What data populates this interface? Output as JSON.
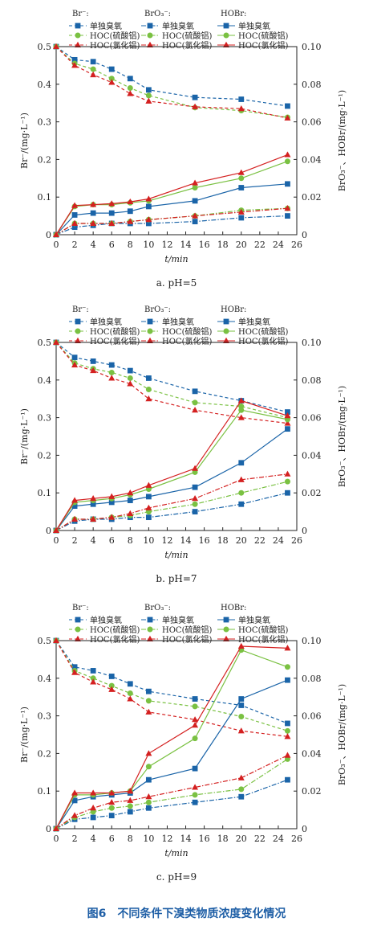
{
  "caption": "图6　不同条件下溴类物质浓度变化情况",
  "colors": {
    "blue": "#1a64a8",
    "green": "#7ac142",
    "red": "#d42020",
    "axis": "#222222"
  },
  "legend": {
    "groups": [
      "Br⁻:",
      "BrO₃⁻:",
      "HOBr:"
    ],
    "items": [
      "单独臭氧",
      "HOC(硫酸铝)",
      "HOC(氯化铝)"
    ]
  },
  "chart_data": [
    {
      "type": "line",
      "subtitle": "a. pH=5",
      "xlabel": "t/min",
      "ylabel_left": "Br⁻/(mg·L⁻¹)",
      "ylabel_right": "BrO₃⁻、HOBr/(mg·L⁻¹)",
      "xlim": [
        0,
        26
      ],
      "ylim_left": [
        0,
        0.5
      ],
      "ylim_right": [
        0,
        0.1
      ],
      "xticks": [
        0,
        2,
        4,
        6,
        8,
        10,
        12,
        14,
        16,
        18,
        20,
        22,
        24,
        26
      ],
      "yticks_left": [
        0,
        0.1,
        0.2,
        0.3,
        0.4,
        0.5
      ],
      "yticks_right": [
        0,
        0.02,
        0.04,
        0.06,
        0.08,
        0.1
      ],
      "ytick_labels_left": [
        "0",
        "0.1",
        "0.2",
        "0.3",
        "0.4",
        "0.5"
      ],
      "ytick_labels_right": [
        "0",
        "0.02",
        "0.04",
        "0.06",
        "0.08",
        "0.10"
      ],
      "x": [
        0,
        2,
        4,
        6,
        8,
        10,
        15,
        20,
        25
      ],
      "series": [
        {
          "group": "Br⁻",
          "name": "单独臭氧",
          "axis": "left",
          "style": "dashed",
          "color": "#1a64a8",
          "marker": "square",
          "values": [
            0.5,
            0.465,
            0.46,
            0.44,
            0.415,
            0.385,
            0.365,
            0.36,
            0.342
          ]
        },
        {
          "group": "Br⁻",
          "name": "HOC(硫酸铝)",
          "axis": "left",
          "style": "dashed",
          "color": "#7ac142",
          "marker": "circle",
          "values": [
            0.5,
            0.455,
            0.44,
            0.415,
            0.39,
            0.37,
            0.338,
            0.33,
            0.312
          ]
        },
        {
          "group": "Br⁻",
          "name": "HOC(氯化铝)",
          "axis": "left",
          "style": "dashed",
          "color": "#d42020",
          "marker": "triangle",
          "values": [
            0.5,
            0.45,
            0.425,
            0.405,
            0.375,
            0.355,
            0.34,
            0.335,
            0.31
          ]
        },
        {
          "group": "BrO₃⁻",
          "name": "单独臭氧",
          "axis": "right",
          "style": "dashdot",
          "color": "#1a64a8",
          "marker": "square",
          "values": [
            0,
            0.004,
            0.005,
            0.006,
            0.006,
            0.006,
            0.007,
            0.009,
            0.01
          ]
        },
        {
          "group": "BrO₃⁻",
          "name": "HOC(硫酸铝)",
          "axis": "right",
          "style": "dashdot",
          "color": "#7ac142",
          "marker": "circle",
          "values": [
            0,
            0.006,
            0.006,
            0.006,
            0.007,
            0.008,
            0.01,
            0.013,
            0.014
          ]
        },
        {
          "group": "BrO₃⁻",
          "name": "HOC(氯化铝)",
          "axis": "right",
          "style": "dashdot",
          "color": "#d42020",
          "marker": "triangle",
          "values": [
            0,
            0.006,
            0.006,
            0.006,
            0.007,
            0.008,
            0.01,
            0.012,
            0.014
          ]
        },
        {
          "group": "HOBr",
          "name": "单独臭氧",
          "axis": "right",
          "style": "solid",
          "color": "#1a64a8",
          "marker": "square",
          "values": [
            0,
            0.0105,
            0.0115,
            0.0115,
            0.0125,
            0.015,
            0.018,
            0.025,
            0.027
          ]
        },
        {
          "group": "HOBr",
          "name": "HOC(硫酸铝)",
          "axis": "right",
          "style": "solid",
          "color": "#7ac142",
          "marker": "circle",
          "values": [
            0,
            0.015,
            0.016,
            0.016,
            0.017,
            0.018,
            0.025,
            0.03,
            0.039
          ]
        },
        {
          "group": "HOBr",
          "name": "HOC(氯化铝)",
          "axis": "right",
          "style": "solid",
          "color": "#d42020",
          "marker": "triangle",
          "values": [
            0,
            0.0155,
            0.016,
            0.0165,
            0.0175,
            0.019,
            0.0275,
            0.033,
            0.0425
          ]
        }
      ]
    },
    {
      "type": "line",
      "subtitle": "b. pH=7",
      "xlabel": "t/min",
      "ylabel_left": "Br⁻/(mg·L⁻¹)",
      "ylabel_right": "BrO₃⁻、HOBr/(mg·L⁻¹)",
      "xlim": [
        0,
        26
      ],
      "ylim_left": [
        0,
        0.5
      ],
      "ylim_right": [
        0,
        0.1
      ],
      "xticks": [
        0,
        2,
        4,
        6,
        8,
        10,
        12,
        14,
        16,
        18,
        20,
        22,
        24,
        26
      ],
      "yticks_left": [
        0,
        0.1,
        0.2,
        0.3,
        0.4,
        0.5
      ],
      "yticks_right": [
        0,
        0.02,
        0.04,
        0.06,
        0.08,
        0.1
      ],
      "ytick_labels_left": [
        "0",
        "0.1",
        "0.2",
        "0.3",
        "0.4",
        "0.5"
      ],
      "ytick_labels_right": [
        "0",
        "0.02",
        "0.04",
        "0.06",
        "0.08",
        "0.10"
      ],
      "x": [
        0,
        2,
        4,
        6,
        8,
        10,
        15,
        20,
        25
      ],
      "series": [
        {
          "group": "Br⁻",
          "name": "单独臭氧",
          "axis": "left",
          "style": "dashed",
          "color": "#1a64a8",
          "marker": "square",
          "values": [
            0.5,
            0.46,
            0.45,
            0.44,
            0.425,
            0.405,
            0.37,
            0.345,
            0.315
          ]
        },
        {
          "group": "Br⁻",
          "name": "HOC(硫酸铝)",
          "axis": "left",
          "style": "dashed",
          "color": "#7ac142",
          "marker": "circle",
          "values": [
            0.5,
            0.445,
            0.43,
            0.42,
            0.405,
            0.375,
            0.34,
            0.33,
            0.3
          ]
        },
        {
          "group": "Br⁻",
          "name": "HOC(氯化铝)",
          "axis": "left",
          "style": "dashed",
          "color": "#d42020",
          "marker": "triangle",
          "values": [
            0.5,
            0.44,
            0.425,
            0.405,
            0.39,
            0.35,
            0.32,
            0.3,
            0.285
          ]
        },
        {
          "group": "BrO₃⁻",
          "name": "单独臭氧",
          "axis": "right",
          "style": "dashdot",
          "color": "#1a64a8",
          "marker": "square",
          "values": [
            0,
            0.005,
            0.006,
            0.006,
            0.007,
            0.007,
            0.01,
            0.014,
            0.02
          ]
        },
        {
          "group": "BrO₃⁻",
          "name": "HOC(硫酸铝)",
          "axis": "right",
          "style": "dashdot",
          "color": "#7ac142",
          "marker": "circle",
          "values": [
            0,
            0.006,
            0.006,
            0.007,
            0.008,
            0.01,
            0.014,
            0.02,
            0.026
          ]
        },
        {
          "group": "BrO₃⁻",
          "name": "HOC(氯化铝)",
          "axis": "right",
          "style": "dashdot",
          "color": "#d42020",
          "marker": "triangle",
          "values": [
            0,
            0.006,
            0.006,
            0.007,
            0.009,
            0.012,
            0.017,
            0.027,
            0.03
          ]
        },
        {
          "group": "HOBr",
          "name": "单独臭氧",
          "axis": "right",
          "style": "solid",
          "color": "#1a64a8",
          "marker": "square",
          "values": [
            0,
            0.013,
            0.014,
            0.015,
            0.016,
            0.018,
            0.023,
            0.036,
            0.054
          ]
        },
        {
          "group": "HOBr",
          "name": "HOC(硫酸铝)",
          "axis": "right",
          "style": "solid",
          "color": "#7ac142",
          "marker": "circle",
          "values": [
            0,
            0.015,
            0.016,
            0.017,
            0.019,
            0.022,
            0.031,
            0.064,
            0.059
          ]
        },
        {
          "group": "HOBr",
          "name": "HOC(氯化铝)",
          "axis": "right",
          "style": "solid",
          "color": "#d42020",
          "marker": "triangle",
          "values": [
            0,
            0.016,
            0.017,
            0.018,
            0.02,
            0.024,
            0.033,
            0.069,
            0.061
          ]
        }
      ]
    },
    {
      "type": "line",
      "subtitle": "c. pH=9",
      "xlabel": "t/min",
      "ylabel_left": "Br⁻/(mg·L⁻¹)",
      "ylabel_right": "BrO₃⁻、HOBr/(mg·L⁻¹)",
      "xlim": [
        0,
        26
      ],
      "ylim_left": [
        0,
        0.5
      ],
      "ylim_right": [
        0,
        0.1
      ],
      "xticks": [
        0,
        2,
        4,
        6,
        8,
        10,
        12,
        14,
        16,
        18,
        20,
        22,
        24,
        26
      ],
      "yticks_left": [
        0,
        0.1,
        0.2,
        0.3,
        0.4,
        0.5
      ],
      "yticks_right": [
        0,
        0.02,
        0.04,
        0.06,
        0.08,
        0.1
      ],
      "ytick_labels_left": [
        "0",
        "0.1",
        "0.2",
        "0.3",
        "0.4",
        "0.5"
      ],
      "ytick_labels_right": [
        "0",
        "0.02",
        "0.04",
        "0.06",
        "0.08",
        "0.10"
      ],
      "x": [
        0,
        2,
        4,
        6,
        8,
        10,
        15,
        20,
        25
      ],
      "series": [
        {
          "group": "Br⁻",
          "name": "单独臭氧",
          "axis": "left",
          "style": "dashed",
          "color": "#1a64a8",
          "marker": "square",
          "values": [
            0.5,
            0.43,
            0.42,
            0.405,
            0.385,
            0.365,
            0.345,
            0.328,
            0.28
          ]
        },
        {
          "group": "Br⁻",
          "name": "HOC(硫酸铝)",
          "axis": "left",
          "style": "dashed",
          "color": "#7ac142",
          "marker": "circle",
          "values": [
            0.5,
            0.42,
            0.4,
            0.38,
            0.36,
            0.34,
            0.325,
            0.298,
            0.26
          ]
        },
        {
          "group": "Br⁻",
          "name": "HOC(氯化铝)",
          "axis": "left",
          "style": "dashed",
          "color": "#d42020",
          "marker": "triangle",
          "values": [
            0.5,
            0.415,
            0.39,
            0.37,
            0.345,
            0.31,
            0.29,
            0.26,
            0.245
          ]
        },
        {
          "group": "BrO₃⁻",
          "name": "单独臭氧",
          "axis": "right",
          "style": "dashdot",
          "color": "#1a64a8",
          "marker": "square",
          "values": [
            0,
            0.005,
            0.006,
            0.007,
            0.009,
            0.011,
            0.014,
            0.017,
            0.026
          ]
        },
        {
          "group": "BrO₃⁻",
          "name": "HOC(硫酸铝)",
          "axis": "right",
          "style": "dashdot",
          "color": "#7ac142",
          "marker": "circle",
          "values": [
            0,
            0.006,
            0.009,
            0.011,
            0.012,
            0.014,
            0.018,
            0.021,
            0.037
          ]
        },
        {
          "group": "BrO₃⁻",
          "name": "HOC(氯化铝)",
          "axis": "right",
          "style": "dashdot",
          "color": "#d42020",
          "marker": "triangle",
          "values": [
            0,
            0.007,
            0.011,
            0.014,
            0.015,
            0.017,
            0.022,
            0.027,
            0.039
          ]
        },
        {
          "group": "HOBr",
          "name": "单独臭氧",
          "axis": "right",
          "style": "solid",
          "color": "#1a64a8",
          "marker": "square",
          "values": [
            0,
            0.015,
            0.017,
            0.018,
            0.019,
            0.026,
            0.032,
            0.069,
            0.079
          ]
        },
        {
          "group": "HOBr",
          "name": "HOC(硫酸铝)",
          "axis": "right",
          "style": "solid",
          "color": "#7ac142",
          "marker": "circle",
          "values": [
            0,
            0.018,
            0.018,
            0.019,
            0.02,
            0.033,
            0.048,
            0.095,
            0.086
          ]
        },
        {
          "group": "HOBr",
          "name": "HOC(氯化铝)",
          "axis": "right",
          "style": "solid",
          "color": "#d42020",
          "marker": "triangle",
          "values": [
            0,
            0.019,
            0.019,
            0.019,
            0.02,
            0.04,
            0.055,
            0.097,
            0.096
          ]
        }
      ]
    }
  ]
}
